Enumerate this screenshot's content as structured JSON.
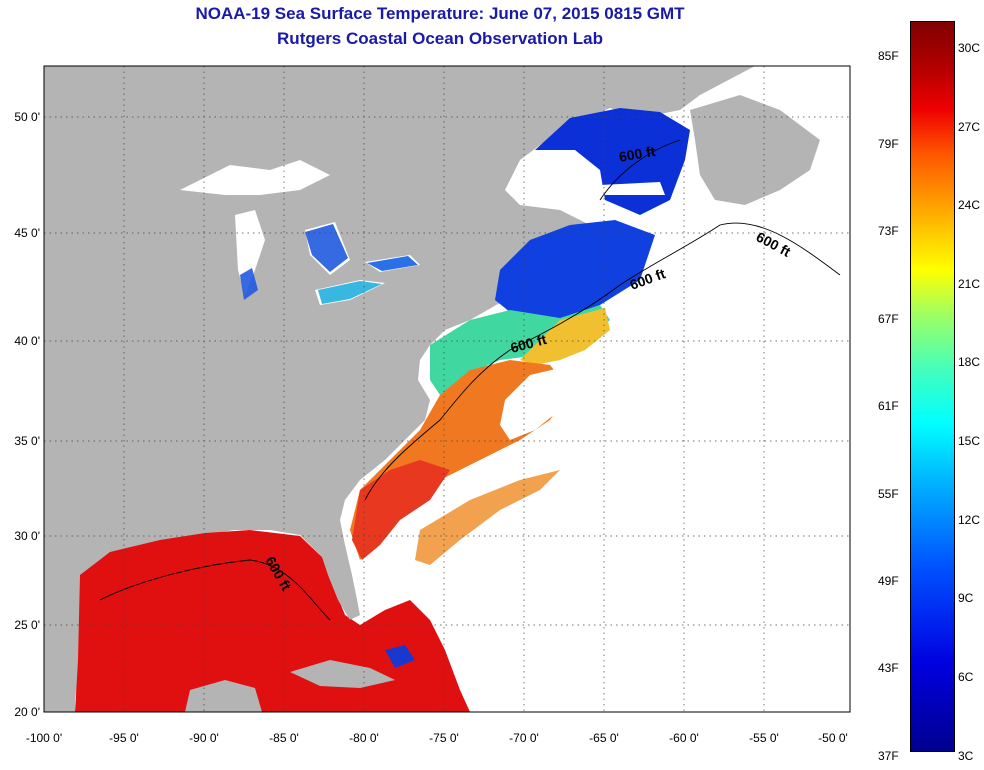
{
  "title": "NOAA-19 Sea Surface Temperature:  June 07, 2015 0815 GMT",
  "subtitle": "Rutgers Coastal Ocean Observation Lab",
  "lat_ticks": [
    "50 0'",
    "45 0'",
    "40 0'",
    "35 0'",
    "30 0'",
    "25 0'",
    "20 0'"
  ],
  "lon_ticks": [
    "-100 0'",
    "-95 0'",
    "-90 0'",
    "-85 0'",
    "-80 0'",
    "-75 0'",
    "-70 0'",
    "-65 0'",
    "-60 0'",
    "-55 0'",
    "-50 0'"
  ],
  "isobath_label": "600 ft",
  "colorbar": {
    "fahrenheit": [
      "85F",
      "79F",
      "73F",
      "67F",
      "61F",
      "55F",
      "49F",
      "43F",
      "37F"
    ],
    "celsius": [
      "30C",
      "27C",
      "24C",
      "21C",
      "18C",
      "15C",
      "12C",
      "9C",
      "6C",
      "3C"
    ]
  },
  "colors": {
    "land": "#b4b4b4",
    "title": "#1a1aa8",
    "warm_water": "#e01010",
    "cold_water": "#0a2fd8"
  }
}
